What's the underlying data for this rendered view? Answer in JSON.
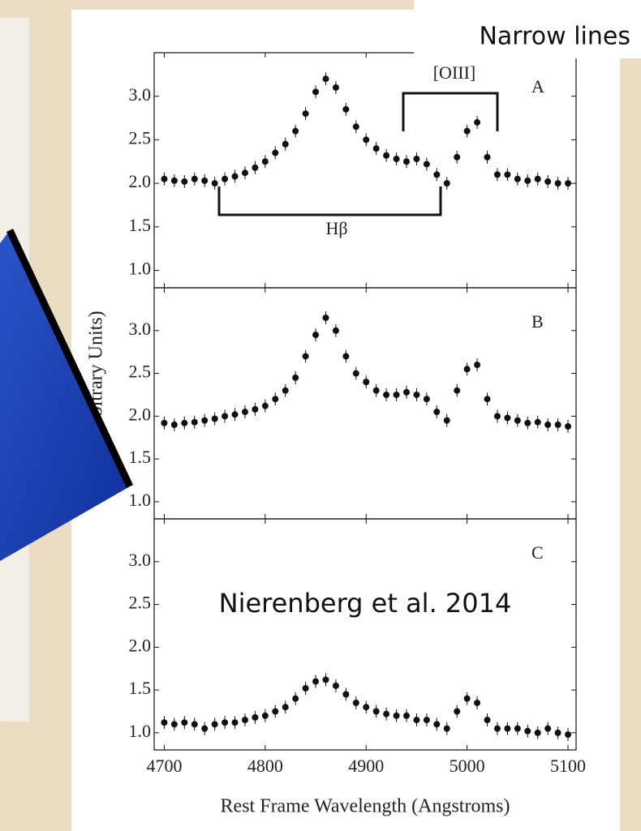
{
  "slide": {
    "title": "Narrow lines",
    "citation": "Nierenberg et al. 2014"
  },
  "chart_data": [
    {
      "type": "scatter",
      "label": "A",
      "annotations": [
        "[OIII]",
        "Hβ"
      ],
      "color": "#111111",
      "x": [
        4700,
        4710,
        4720,
        4730,
        4740,
        4750,
        4760,
        4770,
        4780,
        4790,
        4800,
        4810,
        4820,
        4830,
        4840,
        4850,
        4860,
        4870,
        4880,
        4890,
        4900,
        4910,
        4920,
        4930,
        4940,
        4950,
        4960,
        4970,
        4980,
        4990,
        5000,
        5010,
        5020,
        5030,
        5040,
        5050,
        5060,
        5070,
        5080,
        5090,
        5100
      ],
      "values": [
        2.05,
        2.03,
        2.02,
        2.05,
        2.03,
        2.0,
        2.05,
        2.08,
        2.12,
        2.18,
        2.25,
        2.35,
        2.45,
        2.6,
        2.8,
        3.05,
        3.2,
        3.1,
        2.85,
        2.65,
        2.5,
        2.4,
        2.32,
        2.28,
        2.25,
        2.28,
        2.22,
        2.1,
        2.0,
        2.3,
        2.6,
        2.7,
        2.3,
        2.1,
        2.1,
        2.05,
        2.03,
        2.05,
        2.02,
        2.0,
        2.0
      ],
      "xlim": [
        4690,
        5108
      ],
      "ylim": [
        0.8,
        3.5
      ],
      "yticks": [
        {
          "value": 1,
          "label": "1.0"
        },
        1.5,
        {
          "value": 2,
          "label": "2.0"
        },
        2.5,
        {
          "value": 3,
          "label": "3.0"
        }
      ]
    },
    {
      "type": "scatter",
      "label": "B",
      "ylabel": "Flux (Arbitrary Units)",
      "color": "#111111",
      "x": [
        4700,
        4710,
        4720,
        4730,
        4740,
        4750,
        4760,
        4770,
        4780,
        4790,
        4800,
        4810,
        4820,
        4830,
        4840,
        4850,
        4860,
        4870,
        4880,
        4890,
        4900,
        4910,
        4920,
        4930,
        4940,
        4950,
        4960,
        4970,
        4980,
        4990,
        5000,
        5010,
        5020,
        5030,
        5040,
        5050,
        5060,
        5070,
        5080,
        5090,
        5100
      ],
      "values": [
        1.92,
        1.9,
        1.92,
        1.93,
        1.95,
        1.97,
        2.0,
        2.02,
        2.05,
        2.08,
        2.12,
        2.2,
        2.3,
        2.45,
        2.7,
        2.95,
        3.15,
        3.0,
        2.7,
        2.5,
        2.4,
        2.3,
        2.25,
        2.25,
        2.28,
        2.25,
        2.2,
        2.05,
        1.95,
        2.3,
        2.55,
        2.6,
        2.2,
        2.0,
        1.98,
        1.95,
        1.92,
        1.93,
        1.9,
        1.9,
        1.88
      ],
      "xlim": [
        4690,
        5108
      ],
      "ylim": [
        0.8,
        3.5
      ],
      "yticks": [
        {
          "value": 1,
          "label": "1.0"
        },
        1.5,
        {
          "value": 2,
          "label": "2.0"
        },
        2.5,
        {
          "value": 3,
          "label": "3.0"
        }
      ]
    },
    {
      "type": "scatter",
      "label": "C",
      "xlabel": "Rest Frame Wavelength (Angstroms)",
      "color": "#111111",
      "x": [
        4700,
        4710,
        4720,
        4730,
        4740,
        4750,
        4760,
        4770,
        4780,
        4790,
        4800,
        4810,
        4820,
        4830,
        4840,
        4850,
        4860,
        4870,
        4880,
        4890,
        4900,
        4910,
        4920,
        4930,
        4940,
        4950,
        4960,
        4970,
        4980,
        4990,
        5000,
        5010,
        5020,
        5030,
        5040,
        5050,
        5060,
        5070,
        5080,
        5090,
        5100
      ],
      "values": [
        1.12,
        1.1,
        1.12,
        1.1,
        1.05,
        1.1,
        1.12,
        1.12,
        1.15,
        1.18,
        1.2,
        1.25,
        1.3,
        1.4,
        1.52,
        1.6,
        1.62,
        1.55,
        1.45,
        1.35,
        1.3,
        1.25,
        1.22,
        1.2,
        1.2,
        1.15,
        1.15,
        1.1,
        1.05,
        1.25,
        1.4,
        1.35,
        1.15,
        1.05,
        1.05,
        1.05,
        1.02,
        1.0,
        1.05,
        1.0,
        0.98
      ],
      "xlim": [
        4690,
        5108
      ],
      "ylim": [
        0.8,
        3.5
      ],
      "xticks": [
        4700,
        4800,
        4900,
        5000,
        5100
      ],
      "yticks": [
        {
          "value": 1,
          "label": "1.0"
        },
        1.5,
        {
          "value": 2,
          "label": "2.0"
        },
        2.5,
        {
          "value": 3,
          "label": "3.0"
        }
      ]
    }
  ]
}
